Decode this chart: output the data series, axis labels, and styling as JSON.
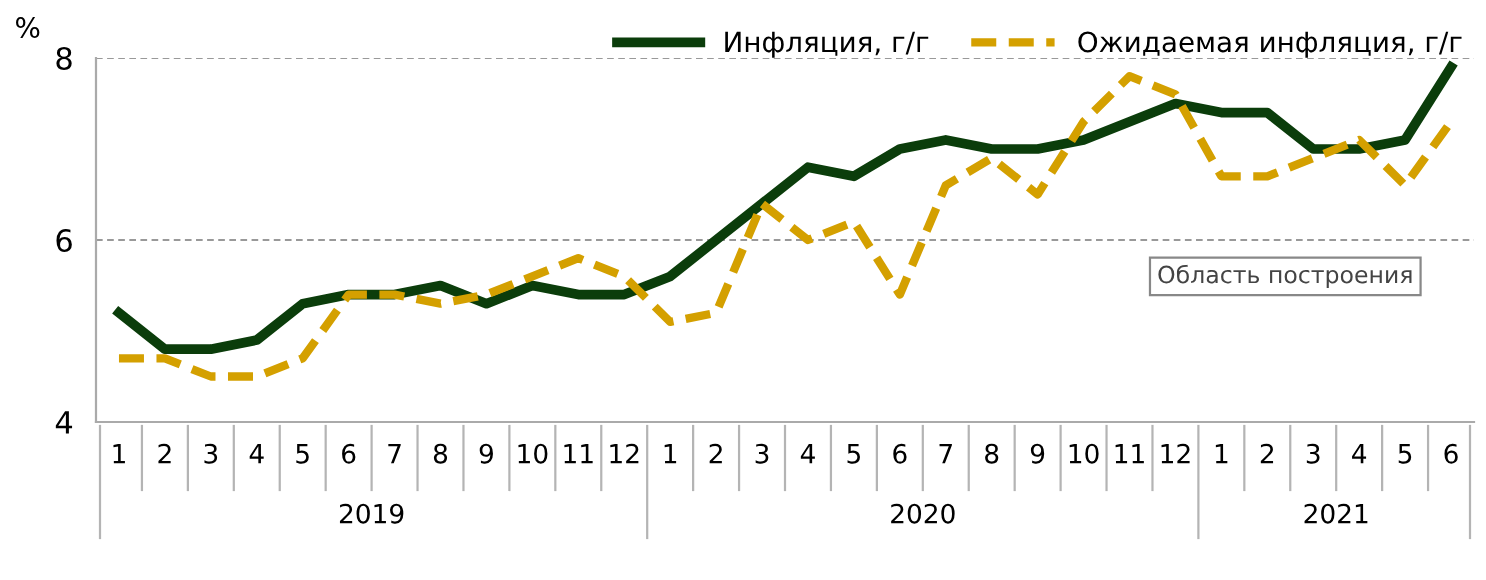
{
  "chart_data": {
    "type": "line",
    "ylabel": "%",
    "categories": [
      "1",
      "2",
      "3",
      "4",
      "5",
      "6",
      "7",
      "8",
      "9",
      "10",
      "11",
      "12",
      "1",
      "2",
      "3",
      "4",
      "5",
      "6",
      "7",
      "8",
      "9",
      "10",
      "11",
      "12",
      "1",
      "2",
      "3",
      "4",
      "5",
      "6"
    ],
    "series": [
      {
        "name": "Инфляция, г/г",
        "color": "#0b3d0b",
        "line_style": "solid",
        "values": [
          5.2,
          4.8,
          4.8,
          4.9,
          5.3,
          5.4,
          5.4,
          5.5,
          5.3,
          5.5,
          5.4,
          5.4,
          5.6,
          6.0,
          6.4,
          6.8,
          6.7,
          7.0,
          7.1,
          7.0,
          7.0,
          7.1,
          7.3,
          7.5,
          7.4,
          7.4,
          7.0,
          7.0,
          7.1,
          7.9
        ]
      },
      {
        "name": "Ожидаемая инфляция, г/г",
        "color": "#d4a000",
        "line_style": "dashed",
        "values": [
          4.7,
          4.7,
          4.5,
          4.5,
          4.7,
          5.4,
          5.4,
          5.3,
          5.4,
          5.6,
          5.8,
          5.6,
          5.1,
          5.2,
          6.4,
          6.0,
          6.2,
          5.4,
          6.6,
          6.9,
          6.5,
          7.3,
          7.8,
          7.6,
          6.7,
          6.7,
          6.9,
          7.1,
          6.6,
          7.3
        ]
      }
    ],
    "ylim": [
      4,
      8
    ],
    "yticks": [
      4,
      6,
      8
    ],
    "grid": "y",
    "legend": "top right",
    "marker": "none",
    "annotations": [
      "2019",
      "2020",
      "2021",
      "Область построения"
    ]
  }
}
